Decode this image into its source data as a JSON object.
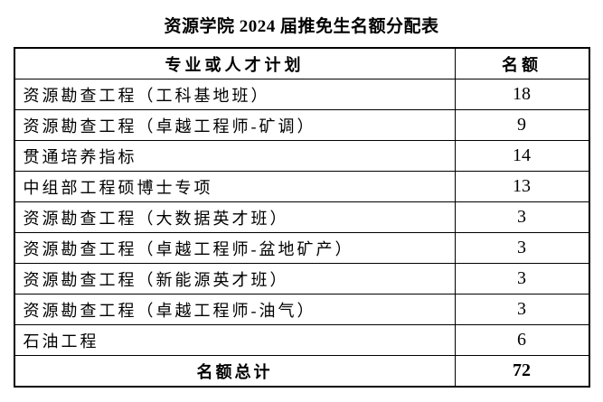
{
  "page": {
    "title": "资源学院 2024 届推免生名额分配表",
    "background_color": "#ffffff",
    "border_color": "#000000",
    "text_color": "#000000"
  },
  "table": {
    "headers": {
      "program": "专业或人才计划",
      "quota": "名额"
    },
    "rows": [
      {
        "program": "资源勘查工程（工科基地班）",
        "quota": "18"
      },
      {
        "program": "资源勘查工程（卓越工程师-矿调）",
        "quota": "9"
      },
      {
        "program": "贯通培养指标",
        "quota": "14"
      },
      {
        "program": "中组部工程硕博士专项",
        "quota": "13"
      },
      {
        "program": "资源勘查工程（大数据英才班）",
        "quota": "3"
      },
      {
        "program": "资源勘查工程（卓越工程师-盆地矿产）",
        "quota": "3"
      },
      {
        "program": "资源勘查工程（新能源英才班）",
        "quota": "3"
      },
      {
        "program": "资源勘查工程（卓越工程师-油气）",
        "quota": "3"
      },
      {
        "program": "石油工程",
        "quota": "6"
      }
    ],
    "total": {
      "label": "名额总计",
      "value": "72"
    }
  }
}
